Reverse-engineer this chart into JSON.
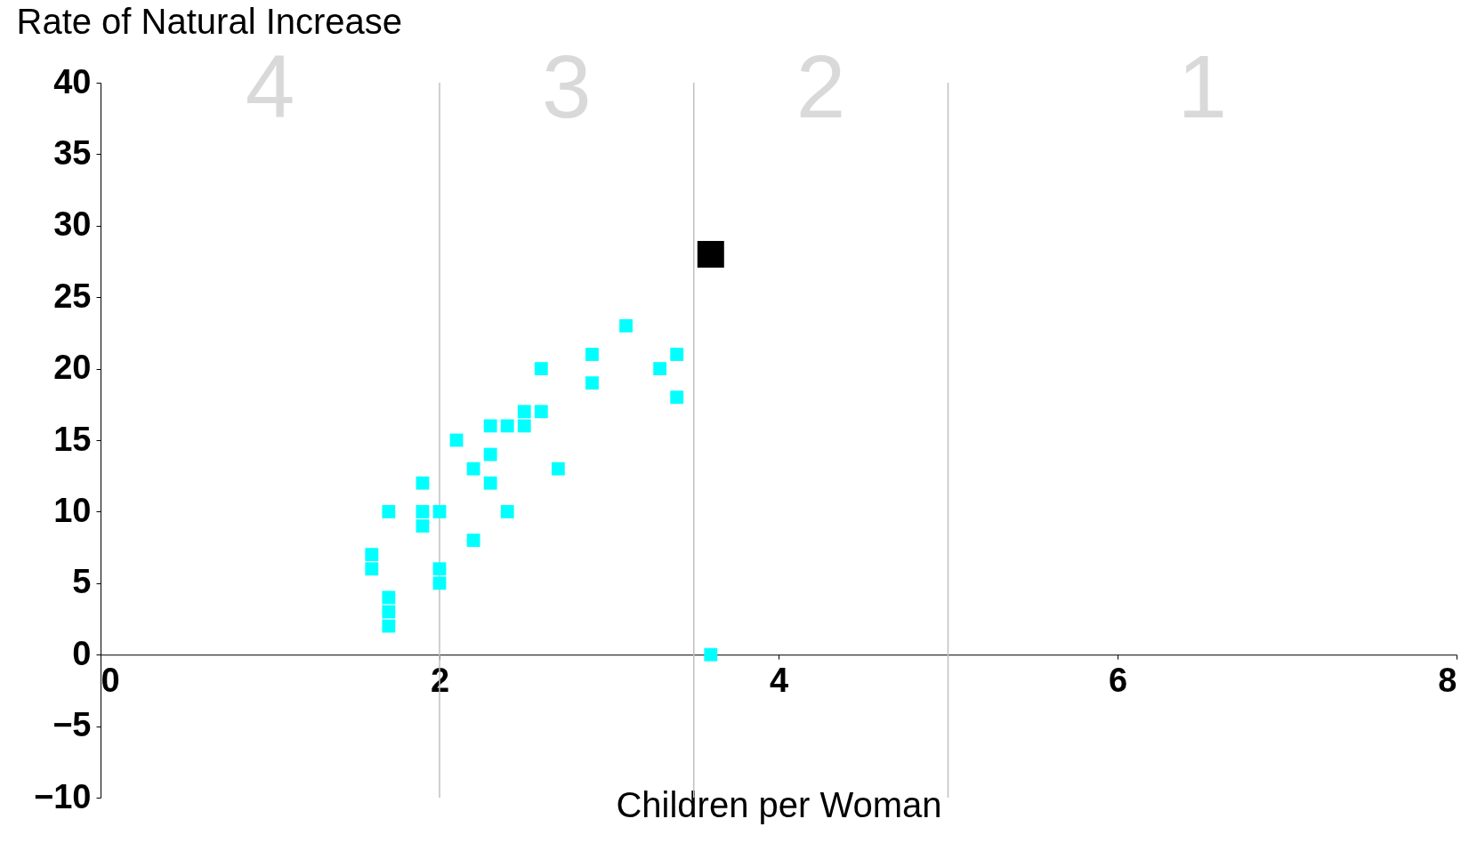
{
  "chart_data": {
    "type": "scatter",
    "xlabel": "Children per Woman",
    "ylabel": "Rate of Natural Increase",
    "xlim": [
      0,
      8
    ],
    "xticks": [
      0,
      2,
      4,
      6,
      8
    ],
    "ylim": [
      -10,
      40
    ],
    "yticks": [
      -10,
      -5,
      0,
      5,
      10,
      15,
      20,
      25,
      30,
      35,
      40
    ],
    "grid": false,
    "marker": "square",
    "series": [
      {
        "color": "#00ffff",
        "x": [
          1.6,
          1.6,
          1.7,
          1.7,
          1.7,
          1.7,
          1.9,
          1.9,
          1.9,
          2.0,
          2.0,
          2.0,
          2.1,
          2.2,
          2.2,
          2.3,
          2.3,
          2.3,
          2.4,
          2.4,
          2.5,
          2.5,
          2.6,
          2.6,
          2.7,
          2.9,
          2.9,
          3.1,
          3.3,
          3.4,
          3.4,
          3.6
        ],
        "values": [
          7,
          6,
          10,
          4,
          3,
          2,
          12,
          10,
          9,
          10,
          6,
          5,
          15,
          13,
          8,
          16,
          14,
          12,
          16,
          10,
          17,
          16,
          20,
          17,
          13,
          21,
          19,
          23,
          20,
          21,
          18,
          0
        ]
      },
      {
        "color": "#000000",
        "x": [
          3.6
        ],
        "values": [
          28
        ]
      }
    ],
    "ref_lines": [
      {
        "axis": "x",
        "value": 2,
        "color": "#c0c0c0"
      },
      {
        "axis": "x",
        "value": 3.5,
        "color": "#c0c0c0"
      },
      {
        "axis": "x",
        "value": 5,
        "color": "#c0c0c0"
      }
    ],
    "annotations": [
      "4",
      "3",
      "2",
      "1"
    ]
  }
}
